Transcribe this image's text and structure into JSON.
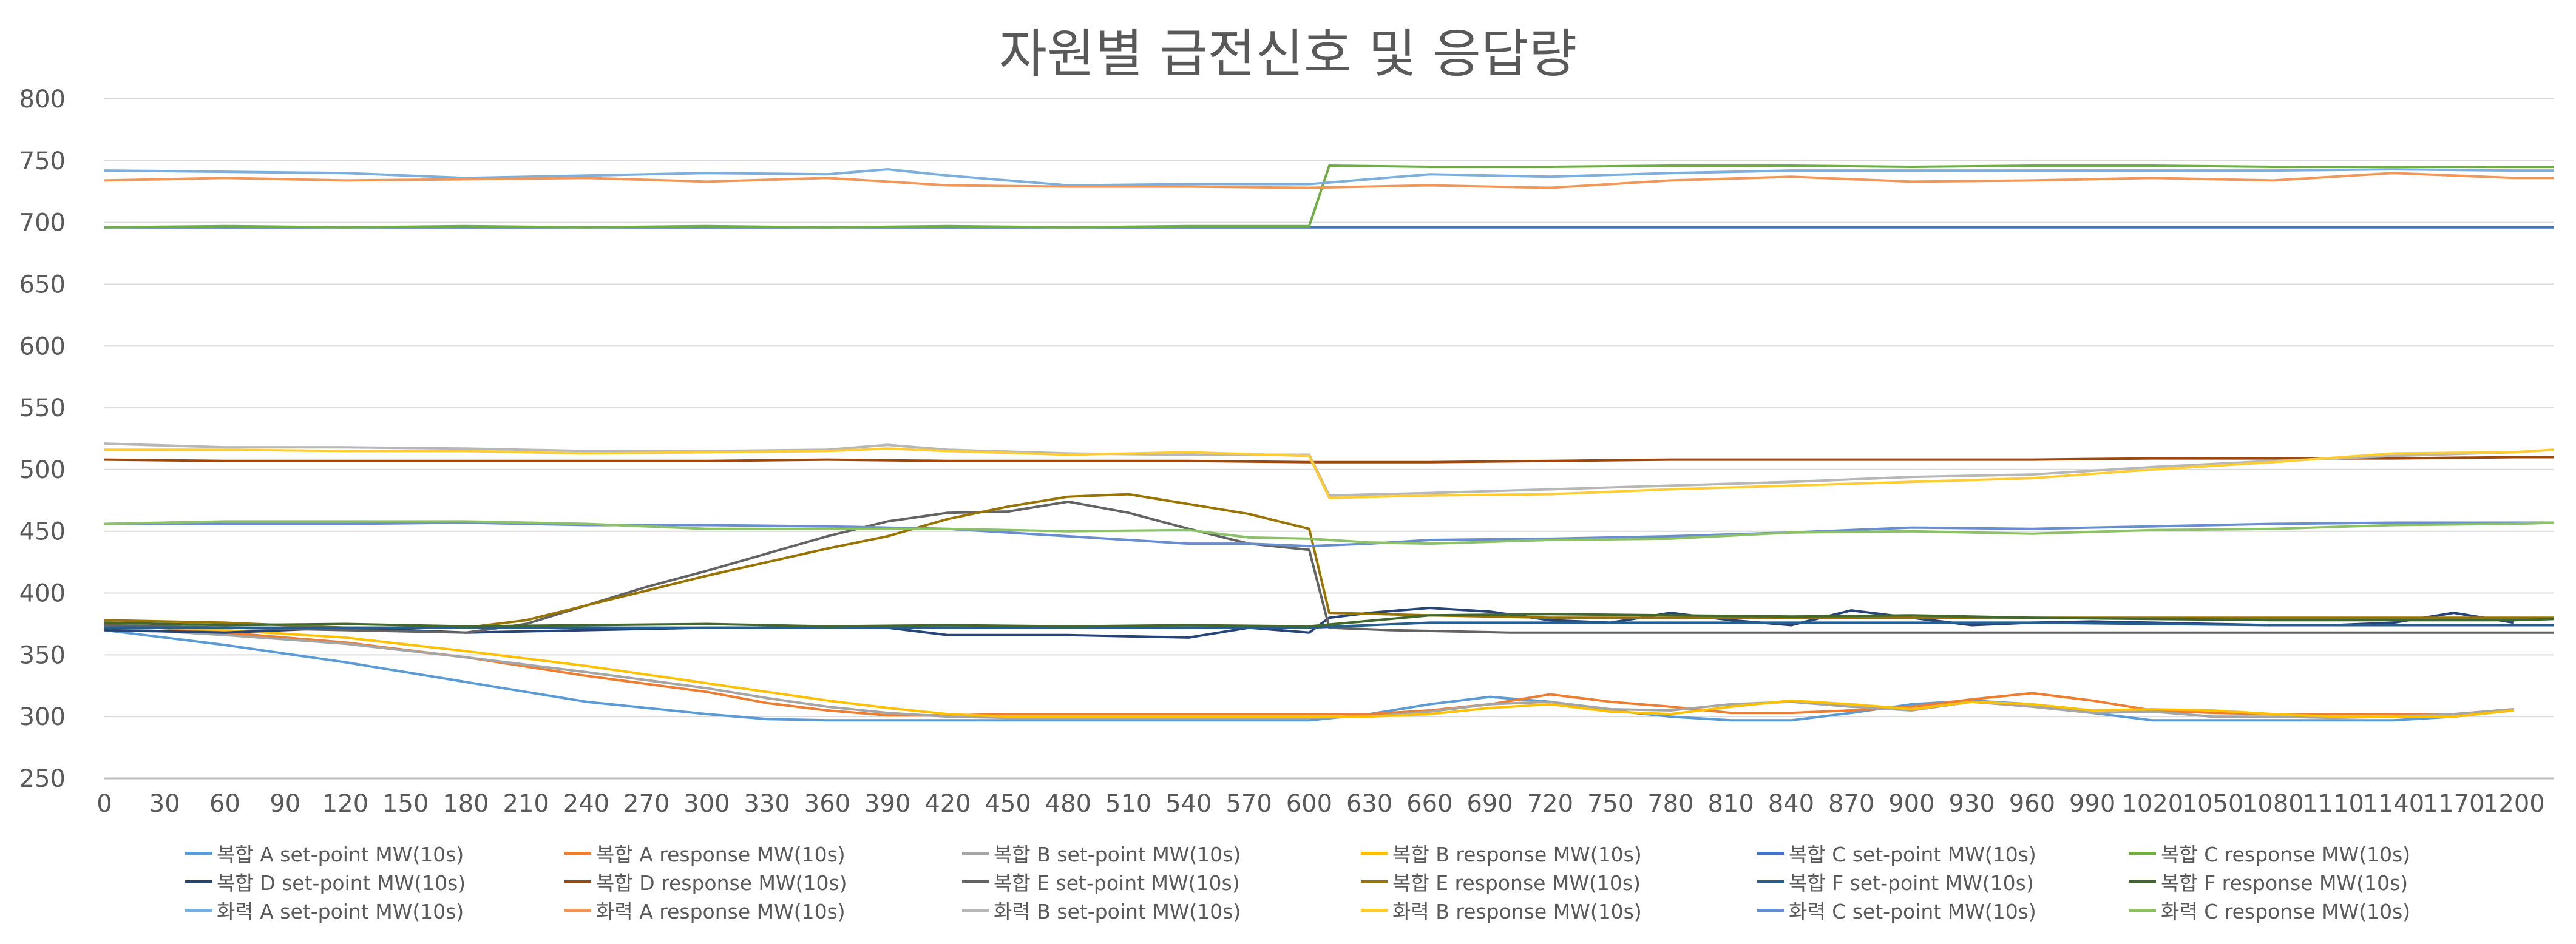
{
  "chart_data": {
    "type": "line",
    "title": "자원별 급전신호 및 응답량",
    "xlabel": "",
    "ylabel": "",
    "ylim": [
      250,
      800
    ],
    "yticks": [
      250,
      300,
      350,
      400,
      450,
      500,
      550,
      600,
      650,
      700,
      750,
      800
    ],
    "xlim": [
      0,
      1220
    ],
    "xticks": [
      0,
      30,
      60,
      90,
      120,
      150,
      180,
      210,
      240,
      270,
      300,
      330,
      360,
      390,
      420,
      450,
      480,
      510,
      540,
      570,
      600,
      630,
      660,
      690,
      720,
      750,
      780,
      810,
      840,
      870,
      900,
      930,
      960,
      990,
      1020,
      1050,
      1080,
      1110,
      1140,
      1170,
      1200
    ],
    "grid": "horizontal",
    "legend_position": "bottom",
    "series": [
      {
        "name": "복합 A set-point MW(10s)",
        "color": "#5B9BD5",
        "x": [
          0,
          60,
          120,
          180,
          240,
          300,
          330,
          360,
          390,
          420,
          450,
          480,
          510,
          540,
          570,
          600,
          630,
          660,
          690,
          720,
          750,
          780,
          810,
          840,
          870,
          900,
          930,
          960,
          990,
          1020,
          1050,
          1080,
          1110,
          1140,
          1170,
          1200
        ],
        "y": [
          370,
          358,
          344,
          328,
          312,
          302,
          298,
          297,
          297,
          297,
          297,
          297,
          297,
          297,
          297,
          297,
          302,
          310,
          316,
          312,
          305,
          300,
          297,
          297,
          303,
          310,
          313,
          310,
          303,
          297,
          297,
          297,
          297,
          297,
          300,
          305
        ]
      },
      {
        "name": "복합 A response MW(10s)",
        "color": "#ED7D31",
        "x": [
          0,
          60,
          120,
          180,
          240,
          300,
          330,
          360,
          390,
          420,
          450,
          480,
          510,
          540,
          570,
          600,
          630,
          660,
          690,
          720,
          750,
          780,
          810,
          840,
          870,
          900,
          930,
          960,
          990,
          1020,
          1050,
          1080,
          1110,
          1140,
          1170,
          1200
        ],
        "y": [
          375,
          368,
          360,
          348,
          333,
          320,
          311,
          305,
          301,
          301,
          302,
          302,
          302,
          302,
          302,
          302,
          302,
          305,
          310,
          318,
          312,
          308,
          303,
          303,
          305,
          308,
          314,
          319,
          313,
          305,
          303,
          302,
          302,
          302,
          302,
          306
        ]
      },
      {
        "name": "복합 B set-point MW(10s)",
        "color": "#A5A5A5",
        "x": [
          0,
          60,
          120,
          180,
          240,
          300,
          330,
          360,
          390,
          420,
          450,
          480,
          510,
          540,
          570,
          600,
          630,
          660,
          690,
          720,
          750,
          780,
          810,
          840,
          870,
          900,
          930,
          960,
          990,
          1020,
          1050,
          1080,
          1110,
          1140,
          1170,
          1200
        ],
        "y": [
          372,
          366,
          359,
          348,
          336,
          323,
          315,
          308,
          303,
          300,
          299,
          299,
          299,
          299,
          299,
          299,
          300,
          304,
          310,
          312,
          306,
          305,
          310,
          312,
          308,
          305,
          312,
          308,
          303,
          304,
          300,
          300,
          299,
          300,
          302,
          306
        ]
      },
      {
        "name": "복합 B response MW(10s)",
        "color": "#FFC000",
        "x": [
          0,
          60,
          120,
          180,
          240,
          300,
          330,
          360,
          390,
          420,
          450,
          480,
          510,
          540,
          570,
          600,
          630,
          660,
          690,
          720,
          750,
          780,
          810,
          840,
          870,
          900,
          930,
          960,
          990,
          1020,
          1050,
          1080,
          1110,
          1140,
          1170,
          1200
        ],
        "y": [
          374,
          370,
          364,
          353,
          341,
          327,
          320,
          313,
          307,
          302,
          300,
          300,
          300,
          300,
          300,
          300,
          300,
          302,
          307,
          310,
          304,
          302,
          308,
          313,
          310,
          306,
          312,
          310,
          305,
          306,
          305,
          302,
          300,
          300,
          300,
          305
        ]
      },
      {
        "name": "복합 C set-point MW(10s)",
        "color": "#4472C4",
        "x": [
          0,
          100,
          200,
          300,
          400,
          500,
          600,
          700,
          800,
          900,
          1000,
          1100,
          1200,
          1220
        ],
        "y": [
          696,
          696,
          696,
          696,
          696,
          696,
          696,
          696,
          696,
          696,
          696,
          696,
          696,
          696
        ]
      },
      {
        "name": "복합 C response MW(10s)",
        "color": "#70AD47",
        "x": [
          0,
          60,
          120,
          180,
          240,
          300,
          360,
          420,
          480,
          540,
          580,
          600,
          610,
          660,
          720,
          780,
          840,
          900,
          960,
          1020,
          1080,
          1140,
          1200,
          1220
        ],
        "y": [
          696,
          697,
          696,
          697,
          696,
          697,
          696,
          697,
          696,
          697,
          697,
          697,
          746,
          745,
          745,
          746,
          746,
          745,
          746,
          746,
          745,
          745,
          745,
          745
        ]
      },
      {
        "name": "복합 D set-point MW(10s)",
        "color": "#264478",
        "x": [
          0,
          60,
          120,
          180,
          240,
          300,
          360,
          390,
          420,
          480,
          540,
          570,
          600,
          610,
          630,
          660,
          690,
          720,
          750,
          780,
          810,
          840,
          870,
          900,
          930,
          960,
          990,
          1020,
          1050,
          1080,
          1110,
          1140,
          1170,
          1200
        ],
        "y": [
          370,
          368,
          372,
          368,
          370,
          372,
          372,
          372,
          366,
          366,
          364,
          372,
          368,
          380,
          384,
          388,
          385,
          378,
          376,
          384,
          378,
          374,
          386,
          380,
          374,
          376,
          377,
          376,
          375,
          374,
          374,
          376,
          384,
          376
        ]
      },
      {
        "name": "복합 D response MW(10s)",
        "color": "#9E480E",
        "x": [
          0,
          60,
          120,
          180,
          240,
          300,
          360,
          420,
          480,
          540,
          600,
          660,
          720,
          780,
          840,
          900,
          960,
          1020,
          1080,
          1140,
          1200,
          1220
        ],
        "y": [
          508,
          507,
          507,
          507,
          507,
          507,
          508,
          507,
          507,
          507,
          506,
          506,
          507,
          508,
          508,
          508,
          508,
          509,
          509,
          509,
          510,
          510
        ]
      },
      {
        "name": "복합 E set-point MW(10s)",
        "color": "#636363",
        "x": [
          0,
          60,
          120,
          180,
          210,
          240,
          270,
          300,
          330,
          360,
          390,
          420,
          450,
          480,
          510,
          540,
          570,
          600,
          610,
          640,
          700,
          760,
          820,
          880,
          940,
          1000,
          1060,
          1120,
          1180,
          1220
        ],
        "y": [
          374,
          372,
          370,
          368,
          375,
          390,
          405,
          418,
          432,
          446,
          458,
          465,
          466,
          474,
          465,
          452,
          440,
          435,
          372,
          370,
          368,
          368,
          368,
          368,
          368,
          368,
          368,
          368,
          368,
          368
        ]
      },
      {
        "name": "복합 E response MW(10s)",
        "color": "#997300",
        "x": [
          0,
          60,
          120,
          180,
          210,
          240,
          270,
          300,
          330,
          360,
          390,
          420,
          450,
          480,
          510,
          540,
          570,
          600,
          610,
          660,
          720,
          780,
          840,
          900,
          960,
          1020,
          1080,
          1140,
          1200,
          1220
        ],
        "y": [
          378,
          376,
          372,
          372,
          378,
          390,
          402,
          414,
          425,
          436,
          446,
          460,
          470,
          478,
          480,
          472,
          464,
          452,
          384,
          382,
          380,
          380,
          380,
          380,
          380,
          380,
          380,
          380,
          380,
          380
        ]
      },
      {
        "name": "복합 F set-point MW(10s)",
        "color": "#255E91",
        "x": [
          0,
          60,
          120,
          180,
          240,
          300,
          360,
          420,
          480,
          540,
          600,
          660,
          720,
          780,
          840,
          900,
          960,
          1020,
          1080,
          1140,
          1200,
          1220
        ],
        "y": [
          372,
          372,
          372,
          372,
          372,
          372,
          372,
          372,
          372,
          372,
          372,
          376,
          376,
          376,
          376,
          376,
          376,
          375,
          374,
          374,
          374,
          374
        ]
      },
      {
        "name": "복합 F response MW(10s)",
        "color": "#43682B",
        "x": [
          0,
          60,
          120,
          180,
          240,
          300,
          360,
          420,
          480,
          540,
          600,
          660,
          720,
          780,
          840,
          900,
          960,
          1020,
          1080,
          1140,
          1200,
          1220
        ],
        "y": [
          376,
          374,
          375,
          373,
          374,
          375,
          373,
          374,
          373,
          374,
          373,
          382,
          383,
          382,
          381,
          382,
          380,
          379,
          378,
          378,
          378,
          379
        ]
      },
      {
        "name": "화력 A set-point MW(10s)",
        "color": "#7CAFDD",
        "x": [
          0,
          60,
          120,
          180,
          240,
          300,
          360,
          390,
          420,
          480,
          540,
          600,
          660,
          720,
          780,
          840,
          900,
          960,
          1020,
          1080,
          1140,
          1200,
          1220
        ],
        "y": [
          742,
          741,
          740,
          736,
          738,
          740,
          739,
          743,
          738,
          730,
          731,
          731,
          739,
          737,
          740,
          742,
          742,
          742,
          742,
          742,
          743,
          742,
          742
        ]
      },
      {
        "name": "화력 A response MW(10s)",
        "color": "#F1975A",
        "x": [
          0,
          60,
          120,
          180,
          240,
          300,
          360,
          420,
          480,
          540,
          600,
          660,
          720,
          780,
          840,
          900,
          960,
          1020,
          1080,
          1140,
          1200,
          1220
        ],
        "y": [
          734,
          736,
          734,
          735,
          736,
          733,
          736,
          730,
          729,
          729,
          728,
          730,
          728,
          734,
          737,
          733,
          734,
          736,
          734,
          740,
          736,
          736
        ]
      },
      {
        "name": "화력 B set-point MW(10s)",
        "color": "#B7B7B7",
        "x": [
          0,
          60,
          120,
          180,
          240,
          300,
          360,
          390,
          420,
          480,
          540,
          600,
          610,
          660,
          720,
          780,
          840,
          900,
          960,
          1020,
          1080,
          1140,
          1200,
          1220
        ],
        "y": [
          521,
          518,
          518,
          517,
          515,
          515,
          516,
          520,
          516,
          513,
          512,
          512,
          479,
          481,
          484,
          487,
          490,
          494,
          496,
          502,
          507,
          511,
          514,
          516
        ]
      },
      {
        "name": "화력 B response MW(10s)",
        "color": "#FFCD33",
        "x": [
          0,
          60,
          120,
          180,
          240,
          300,
          360,
          390,
          420,
          480,
          540,
          600,
          610,
          660,
          720,
          780,
          840,
          900,
          960,
          1020,
          1080,
          1140,
          1200,
          1220
        ],
        "y": [
          516,
          516,
          515,
          515,
          513,
          514,
          515,
          517,
          515,
          512,
          514,
          511,
          477,
          479,
          480,
          484,
          487,
          490,
          493,
          500,
          506,
          513,
          514,
          516
        ]
      },
      {
        "name": "화력 C set-point MW(10s)",
        "color": "#698ED0",
        "x": [
          0,
          60,
          120,
          180,
          240,
          300,
          360,
          420,
          480,
          540,
          570,
          600,
          630,
          660,
          720,
          780,
          840,
          900,
          960,
          1020,
          1080,
          1140,
          1200,
          1220
        ],
        "y": [
          456,
          456,
          456,
          457,
          455,
          455,
          454,
          452,
          446,
          440,
          440,
          438,
          440,
          443,
          444,
          446,
          449,
          453,
          452,
          454,
          456,
          457,
          457,
          457
        ]
      },
      {
        "name": "화력 C response MW(10s)",
        "color": "#8CC168",
        "x": [
          0,
          60,
          120,
          180,
          240,
          300,
          360,
          420,
          480,
          540,
          570,
          600,
          630,
          660,
          720,
          780,
          840,
          900,
          960,
          1020,
          1080,
          1140,
          1200,
          1220
        ],
        "y": [
          456,
          458,
          458,
          458,
          456,
          452,
          452,
          452,
          450,
          451,
          445,
          444,
          441,
          440,
          443,
          444,
          449,
          450,
          448,
          451,
          452,
          455,
          456,
          457
        ]
      }
    ]
  }
}
